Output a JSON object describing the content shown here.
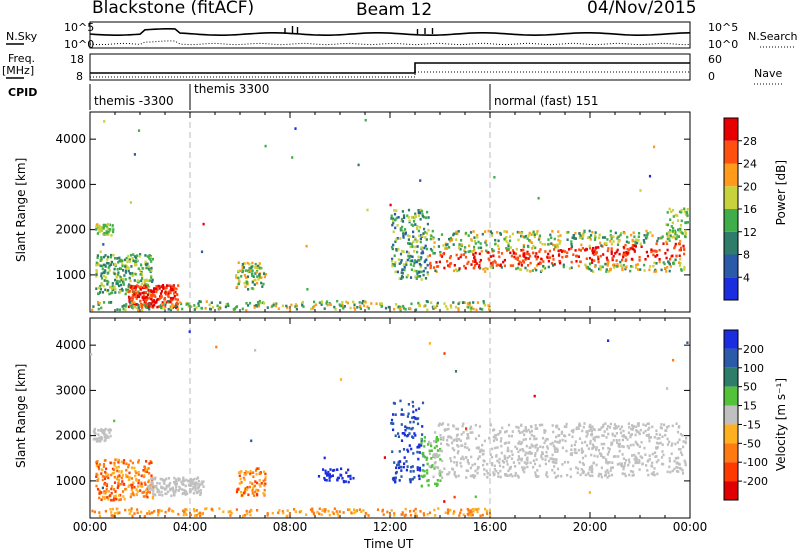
{
  "header": {
    "station": "Blackstone (fitACF)",
    "beam": "Beam 12",
    "date": "04/Nov/2015"
  },
  "strip_labels": {
    "nsky": "N.Sky",
    "nsearch": "N.Search",
    "freq_top": "Freq.",
    "freq_unit": "[MHz]",
    "nave": "Nave",
    "cpid": "CPID",
    "nsky_tick_high": "10^5",
    "nsky_tick_low": "10^0",
    "nsearch_tick_high": "10^5",
    "nsearch_tick_low": "10^0",
    "freq_tick_high": "18",
    "freq_tick_low": "8",
    "nave_tick_high": "60",
    "nave_tick_low": "0"
  },
  "cpid_segments": [
    "themis -3300",
    "themis 3300",
    "normal (fast) 151"
  ],
  "chart_data": [
    {
      "type": "heatmap",
      "name": "power",
      "ylabel": "Slant Range [km]",
      "xlabel": "",
      "x_ticks": [
        "00:00",
        "04:00",
        "08:00",
        "12:00",
        "16:00",
        "20:00",
        "00:00"
      ],
      "y_ticks": [
        1000,
        2000,
        3000,
        4000
      ],
      "xlim_hours": [
        0,
        24
      ],
      "ylim_km": [
        180,
        4600
      ],
      "colorbar_label": "Power [dB]",
      "colorbar_ticks": [
        4,
        8,
        12,
        16,
        20,
        24,
        28
      ],
      "colors": [
        "#1a2ee0",
        "#2a5aa8",
        "#2e7d6a",
        "#3fae4a",
        "#c8d23a",
        "#ff9a1a",
        "#ff5010",
        "#e80000"
      ]
    },
    {
      "type": "heatmap",
      "name": "velocity",
      "ylabel": "Slant Range [km]",
      "xlabel": "Time UT",
      "x_ticks": [
        "00:00",
        "04:00",
        "08:00",
        "12:00",
        "16:00",
        "20:00",
        "00:00"
      ],
      "y_ticks": [
        1000,
        2000,
        3000,
        4000
      ],
      "xlim_hours": [
        0,
        24
      ],
      "ylim_km": [
        180,
        4600
      ],
      "colorbar_label": "Velocity [m s⁻¹]",
      "colorbar_ticks": [
        200,
        100,
        50,
        15,
        -15,
        -50,
        -100,
        -200
      ],
      "colors": [
        "#1a2ee0",
        "#2a5aa8",
        "#2e7d6a",
        "#52c23a",
        "#c0c0c0",
        "#ffb020",
        "#ff7a10",
        "#ff3a00",
        "#e00000"
      ]
    }
  ]
}
